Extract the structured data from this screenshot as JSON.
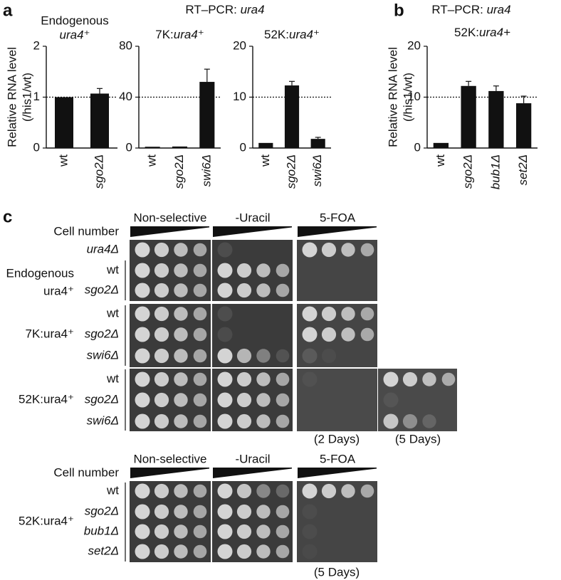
{
  "figure": {
    "panel_a": {
      "label": "a",
      "heading": "RT–PCR:",
      "heading_gene": "ura4"
    },
    "panel_b": {
      "label": "b",
      "heading": "RT–PCR:",
      "heading_gene": "ura4"
    },
    "panel_c": {
      "label": "c",
      "top": {
        "conditions": [
          "Non-selective",
          "-Uracil",
          "5-FOA"
        ],
        "cell_number": "Cell number",
        "strains": [
          {
            "rows": [
              "ura4Δ"
            ]
          },
          {
            "label": [
              "Endogenous",
              "ura4⁺"
            ],
            "rows": [
              "wt",
              "sgo2Δ"
            ]
          },
          {
            "label": [
              "7K:ura4⁺"
            ],
            "rows": [
              "wt",
              "sgo2Δ",
              "swi6Δ"
            ]
          },
          {
            "label": [
              "52K:ura4⁺"
            ],
            "rows": [
              "wt",
              "sgo2Δ",
              "swi6Δ"
            ]
          }
        ],
        "durations": [
          "(2 Days)",
          "(5 Days)"
        ]
      },
      "bottom": {
        "conditions": [
          "Non-selective",
          "-Uracil",
          "5-FOA"
        ],
        "cell_number": "Cell number",
        "strains": [
          {
            "label": [
              "52K:ura4⁺"
            ],
            "rows": [
              "wt",
              "sgo2Δ",
              "bub1Δ",
              "set2Δ"
            ]
          }
        ],
        "durations": [
          "(5 Days)"
        ]
      }
    }
  },
  "chart_data": [
    {
      "type": "bar",
      "title": "Endogenous",
      "subtitle": "ura4⁺",
      "ylabel": [
        "Relative RNA level",
        "(/his1/wt)"
      ],
      "categories": [
        "wt",
        "sgo2Δ"
      ],
      "values": [
        1,
        1.07
      ],
      "errors": [
        0,
        0.1
      ],
      "color": "#111111",
      "ylim": [
        0,
        2
      ],
      "yticks": [
        0,
        1,
        2
      ],
      "reference_line": 1
    },
    {
      "type": "bar",
      "title": "7K:",
      "title_gene": "ura4⁺",
      "categories": [
        "wt",
        "sgo2Δ",
        "swi6Δ"
      ],
      "values": [
        1,
        1.2,
        52
      ],
      "errors": [
        0,
        0,
        10
      ],
      "color": "#111111",
      "ylim": [
        0,
        80
      ],
      "yticks": [
        0,
        40,
        80
      ],
      "reference_line": 40
    },
    {
      "type": "bar",
      "title": "52K:",
      "title_gene": "ura4⁺",
      "categories": [
        "wt",
        "sgo2Δ",
        "swi6Δ"
      ],
      "values": [
        1,
        12.3,
        1.8
      ],
      "errors": [
        0,
        0.8,
        0.3
      ],
      "color": "#111111",
      "ylim": [
        0,
        20
      ],
      "yticks": [
        0,
        10,
        20
      ],
      "reference_line": 10
    },
    {
      "type": "bar",
      "title": "52K:",
      "title_gene": "ura4+",
      "ylabel": [
        "Relative RNA level",
        "(/his1/wt)"
      ],
      "categories": [
        "wt",
        "sgo2Δ",
        "bub1Δ",
        "set2Δ"
      ],
      "values": [
        1,
        12.2,
        11.2,
        8.8
      ],
      "errors": [
        0,
        0.9,
        1.0,
        1.4
      ],
      "color": "#111111",
      "ylim": [
        0,
        20
      ],
      "yticks": [
        0,
        10,
        20
      ],
      "reference_line": 10
    }
  ]
}
